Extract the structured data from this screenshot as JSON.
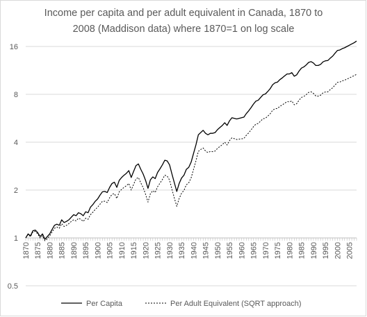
{
  "chart_data": {
    "type": "line",
    "title_lines": [
      "Income per capita and per adult equivalent in Canada, 1870 to",
      "2008 (Maddison data) where 1870=1 on  log scale"
    ],
    "y_scale": "log2",
    "ylim": [
      0.5,
      16
    ],
    "y_ticks": [
      "0.5",
      "1",
      "2",
      "4",
      "8",
      "16"
    ],
    "y_tick_values": [
      0.5,
      1,
      2,
      4,
      8,
      16
    ],
    "xlim": [
      1870,
      2008
    ],
    "x_ticks": [
      "1870",
      "1875",
      "1880",
      "1885",
      "1890",
      "1895",
      "1900",
      "1905",
      "1910",
      "1915",
      "1920",
      "1925",
      "1930",
      "1935",
      "1940",
      "1945",
      "1950",
      "1955",
      "1960",
      "1965",
      "1970",
      "1975",
      "1980",
      "1985",
      "1990",
      "1995",
      "2000",
      "2005"
    ],
    "grid": "horizontal",
    "legend_position": "bottom",
    "colors": {
      "series": "#000000",
      "grid": "#d9d9d9",
      "text": "#595959"
    },
    "series": [
      {
        "name": "Per Capita",
        "style": "solid",
        "points": [
          [
            1870,
            1.0
          ],
          [
            1871,
            1.06
          ],
          [
            1872,
            1.03
          ],
          [
            1873,
            1.11
          ],
          [
            1874,
            1.12
          ],
          [
            1875,
            1.08
          ],
          [
            1876,
            1.02
          ],
          [
            1877,
            1.06
          ],
          [
            1878,
            0.98
          ],
          [
            1879,
            1.02
          ],
          [
            1880,
            1.06
          ],
          [
            1881,
            1.13
          ],
          [
            1882,
            1.2
          ],
          [
            1883,
            1.22
          ],
          [
            1884,
            1.2
          ],
          [
            1885,
            1.3
          ],
          [
            1886,
            1.25
          ],
          [
            1887,
            1.27
          ],
          [
            1888,
            1.3
          ],
          [
            1889,
            1.35
          ],
          [
            1890,
            1.4
          ],
          [
            1891,
            1.38
          ],
          [
            1892,
            1.44
          ],
          [
            1893,
            1.42
          ],
          [
            1894,
            1.38
          ],
          [
            1895,
            1.46
          ],
          [
            1896,
            1.44
          ],
          [
            1897,
            1.56
          ],
          [
            1898,
            1.62
          ],
          [
            1899,
            1.7
          ],
          [
            1900,
            1.76
          ],
          [
            1901,
            1.86
          ],
          [
            1902,
            1.95
          ],
          [
            1903,
            1.96
          ],
          [
            1904,
            1.93
          ],
          [
            1905,
            2.08
          ],
          [
            1906,
            2.2
          ],
          [
            1907,
            2.24
          ],
          [
            1908,
            2.08
          ],
          [
            1909,
            2.3
          ],
          [
            1910,
            2.4
          ],
          [
            1911,
            2.48
          ],
          [
            1912,
            2.55
          ],
          [
            1913,
            2.65
          ],
          [
            1914,
            2.4
          ],
          [
            1915,
            2.62
          ],
          [
            1916,
            2.85
          ],
          [
            1917,
            2.92
          ],
          [
            1918,
            2.7
          ],
          [
            1919,
            2.52
          ],
          [
            1920,
            2.3
          ],
          [
            1921,
            2.05
          ],
          [
            1922,
            2.32
          ],
          [
            1923,
            2.42
          ],
          [
            1924,
            2.36
          ],
          [
            1925,
            2.58
          ],
          [
            1926,
            2.72
          ],
          [
            1927,
            2.88
          ],
          [
            1928,
            3.08
          ],
          [
            1929,
            3.05
          ],
          [
            1930,
            2.88
          ],
          [
            1931,
            2.52
          ],
          [
            1932,
            2.22
          ],
          [
            1933,
            1.96
          ],
          [
            1934,
            2.2
          ],
          [
            1935,
            2.38
          ],
          [
            1936,
            2.48
          ],
          [
            1937,
            2.7
          ],
          [
            1938,
            2.78
          ],
          [
            1939,
            3.0
          ],
          [
            1940,
            3.4
          ],
          [
            1941,
            3.85
          ],
          [
            1942,
            4.45
          ],
          [
            1943,
            4.6
          ],
          [
            1944,
            4.75
          ],
          [
            1945,
            4.55
          ],
          [
            1946,
            4.45
          ],
          [
            1947,
            4.55
          ],
          [
            1948,
            4.55
          ],
          [
            1949,
            4.6
          ],
          [
            1950,
            4.8
          ],
          [
            1951,
            4.95
          ],
          [
            1952,
            5.1
          ],
          [
            1953,
            5.3
          ],
          [
            1954,
            5.1
          ],
          [
            1955,
            5.45
          ],
          [
            1956,
            5.7
          ],
          [
            1957,
            5.65
          ],
          [
            1958,
            5.6
          ],
          [
            1959,
            5.65
          ],
          [
            1960,
            5.7
          ],
          [
            1961,
            5.75
          ],
          [
            1962,
            6.05
          ],
          [
            1963,
            6.3
          ],
          [
            1964,
            6.6
          ],
          [
            1965,
            6.95
          ],
          [
            1966,
            7.25
          ],
          [
            1967,
            7.35
          ],
          [
            1968,
            7.65
          ],
          [
            1969,
            7.95
          ],
          [
            1970,
            8.05
          ],
          [
            1971,
            8.35
          ],
          [
            1972,
            8.7
          ],
          [
            1973,
            9.2
          ],
          [
            1974,
            9.45
          ],
          [
            1975,
            9.55
          ],
          [
            1976,
            9.9
          ],
          [
            1977,
            10.15
          ],
          [
            1978,
            10.45
          ],
          [
            1979,
            10.75
          ],
          [
            1980,
            10.75
          ],
          [
            1981,
            10.95
          ],
          [
            1982,
            10.4
          ],
          [
            1983,
            10.6
          ],
          [
            1984,
            11.2
          ],
          [
            1985,
            11.7
          ],
          [
            1986,
            11.9
          ],
          [
            1987,
            12.25
          ],
          [
            1988,
            12.7
          ],
          [
            1989,
            12.85
          ],
          [
            1990,
            12.6
          ],
          [
            1991,
            12.15
          ],
          [
            1992,
            12.15
          ],
          [
            1993,
            12.35
          ],
          [
            1994,
            12.8
          ],
          [
            1995,
            13.0
          ],
          [
            1996,
            13.05
          ],
          [
            1997,
            13.5
          ],
          [
            1998,
            13.9
          ],
          [
            1999,
            14.5
          ],
          [
            2000,
            15.1
          ],
          [
            2001,
            15.2
          ],
          [
            2002,
            15.5
          ],
          [
            2003,
            15.7
          ],
          [
            2004,
            16.0
          ],
          [
            2005,
            16.3
          ],
          [
            2006,
            16.6
          ],
          [
            2007,
            16.9
          ],
          [
            2008,
            17.3
          ]
        ]
      },
      {
        "name": "Per Adult Equivalent (SQRT approach)",
        "style": "dashed",
        "points": [
          [
            1870,
            1.0
          ],
          [
            1871,
            1.05
          ],
          [
            1872,
            1.02
          ],
          [
            1873,
            1.09
          ],
          [
            1874,
            1.1
          ],
          [
            1875,
            1.06
          ],
          [
            1876,
            1.0
          ],
          [
            1877,
            1.03
          ],
          [
            1878,
            0.96
          ],
          [
            1879,
            0.99
          ],
          [
            1880,
            1.03
          ],
          [
            1881,
            1.09
          ],
          [
            1882,
            1.15
          ],
          [
            1883,
            1.17
          ],
          [
            1884,
            1.15
          ],
          [
            1885,
            1.23
          ],
          [
            1886,
            1.18
          ],
          [
            1887,
            1.2
          ],
          [
            1888,
            1.23
          ],
          [
            1889,
            1.27
          ],
          [
            1890,
            1.3
          ],
          [
            1891,
            1.28
          ],
          [
            1892,
            1.33
          ],
          [
            1893,
            1.31
          ],
          [
            1894,
            1.27
          ],
          [
            1895,
            1.33
          ],
          [
            1896,
            1.31
          ],
          [
            1897,
            1.4
          ],
          [
            1898,
            1.45
          ],
          [
            1899,
            1.51
          ],
          [
            1900,
            1.56
          ],
          [
            1901,
            1.63
          ],
          [
            1902,
            1.7
          ],
          [
            1903,
            1.7
          ],
          [
            1904,
            1.67
          ],
          [
            1905,
            1.79
          ],
          [
            1906,
            1.88
          ],
          [
            1907,
            1.9
          ],
          [
            1908,
            1.77
          ],
          [
            1909,
            1.95
          ],
          [
            1910,
            2.02
          ],
          [
            1911,
            2.08
          ],
          [
            1912,
            2.13
          ],
          [
            1913,
            2.2
          ],
          [
            1914,
            2.0
          ],
          [
            1915,
            2.17
          ],
          [
            1916,
            2.35
          ],
          [
            1917,
            2.4
          ],
          [
            1918,
            2.22
          ],
          [
            1919,
            2.07
          ],
          [
            1920,
            1.88
          ],
          [
            1921,
            1.68
          ],
          [
            1922,
            1.9
          ],
          [
            1923,
            1.98
          ],
          [
            1924,
            1.93
          ],
          [
            1925,
            2.1
          ],
          [
            1926,
            2.21
          ],
          [
            1927,
            2.33
          ],
          [
            1928,
            2.48
          ],
          [
            1929,
            2.45
          ],
          [
            1930,
            2.31
          ],
          [
            1931,
            2.02
          ],
          [
            1932,
            1.78
          ],
          [
            1933,
            1.58
          ],
          [
            1934,
            1.77
          ],
          [
            1935,
            1.91
          ],
          [
            1936,
            1.99
          ],
          [
            1937,
            2.16
          ],
          [
            1938,
            2.22
          ],
          [
            1939,
            2.39
          ],
          [
            1940,
            2.7
          ],
          [
            1941,
            3.05
          ],
          [
            1942,
            3.5
          ],
          [
            1943,
            3.6
          ],
          [
            1944,
            3.68
          ],
          [
            1945,
            3.52
          ],
          [
            1946,
            3.44
          ],
          [
            1947,
            3.5
          ],
          [
            1948,
            3.49
          ],
          [
            1949,
            3.52
          ],
          [
            1950,
            3.66
          ],
          [
            1951,
            3.76
          ],
          [
            1952,
            3.86
          ],
          [
            1953,
            4.0
          ],
          [
            1954,
            3.84
          ],
          [
            1955,
            4.09
          ],
          [
            1956,
            4.26
          ],
          [
            1957,
            4.21
          ],
          [
            1958,
            4.16
          ],
          [
            1959,
            4.18
          ],
          [
            1960,
            4.2
          ],
          [
            1961,
            4.22
          ],
          [
            1962,
            4.42
          ],
          [
            1963,
            4.58
          ],
          [
            1964,
            4.78
          ],
          [
            1965,
            5.01
          ],
          [
            1966,
            5.2
          ],
          [
            1967,
            5.25
          ],
          [
            1968,
            5.44
          ],
          [
            1969,
            5.62
          ],
          [
            1970,
            5.66
          ],
          [
            1971,
            5.84
          ],
          [
            1972,
            6.05
          ],
          [
            1973,
            6.36
          ],
          [
            1974,
            6.49
          ],
          [
            1975,
            6.52
          ],
          [
            1976,
            6.72
          ],
          [
            1977,
            6.86
          ],
          [
            1978,
            7.03
          ],
          [
            1979,
            7.2
          ],
          [
            1980,
            7.17
          ],
          [
            1981,
            7.27
          ],
          [
            1982,
            6.88
          ],
          [
            1983,
            6.98
          ],
          [
            1984,
            7.35
          ],
          [
            1985,
            7.65
          ],
          [
            1986,
            7.76
          ],
          [
            1987,
            7.96
          ],
          [
            1988,
            8.23
          ],
          [
            1989,
            8.3
          ],
          [
            1990,
            8.12
          ],
          [
            1991,
            7.81
          ],
          [
            1992,
            7.79
          ],
          [
            1993,
            7.9
          ],
          [
            1994,
            8.17
          ],
          [
            1995,
            8.28
          ],
          [
            1996,
            8.29
          ],
          [
            1997,
            8.56
          ],
          [
            1998,
            8.79
          ],
          [
            1999,
            9.15
          ],
          [
            2000,
            9.51
          ],
          [
            2001,
            9.55
          ],
          [
            2002,
            9.72
          ],
          [
            2003,
            9.82
          ],
          [
            2004,
            9.98
          ],
          [
            2005,
            10.15
          ],
          [
            2006,
            10.32
          ],
          [
            2007,
            10.49
          ],
          [
            2008,
            10.7
          ]
        ]
      }
    ]
  }
}
